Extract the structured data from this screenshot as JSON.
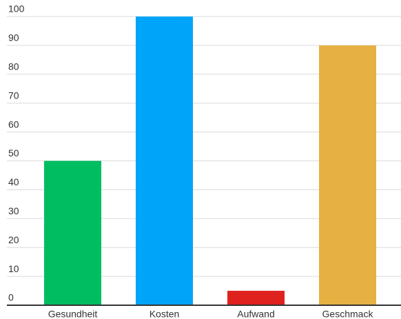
{
  "chart_data": {
    "type": "bar",
    "categories": [
      "Gesundheit",
      "Kosten",
      "Aufwand",
      "Geschmack"
    ],
    "values": [
      50,
      100,
      5,
      90
    ],
    "colors": [
      "#00bd62",
      "#00a5f9",
      "#e0221f",
      "#e6b142"
    ],
    "ylim": [
      0,
      100
    ],
    "yticks": [
      0,
      10,
      20,
      30,
      40,
      50,
      60,
      70,
      80,
      90,
      100
    ],
    "grid": true
  }
}
